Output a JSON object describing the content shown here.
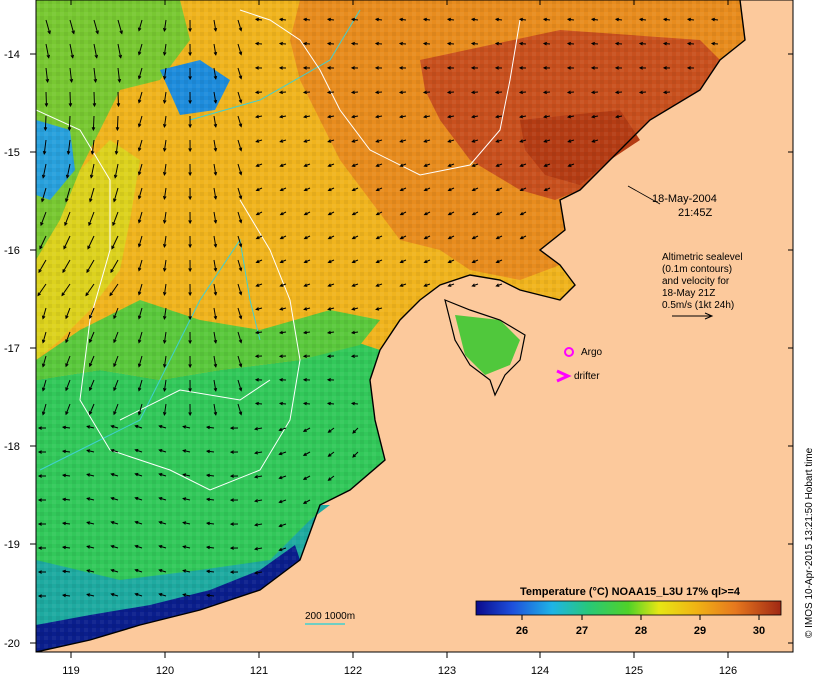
{
  "map": {
    "date_line1": "18-May-2004",
    "date_line2": "21:45Z",
    "altimetry": {
      "line1": "Altimetric sealevel",
      "line2": "(0.1m contours)",
      "line3": "and velocity for",
      "line4": "18-May 21Z",
      "line5": "0.5m/s (1kt 24h)"
    },
    "legend": {
      "argo": "Argo",
      "drifter": "drifter",
      "depth_contours": "200  1000m"
    },
    "axes": {
      "lon_ticks": [
        "119",
        "120",
        "121",
        "122",
        "123",
        "124",
        "125",
        "126"
      ],
      "lat_ticks": [
        "-14",
        "-15",
        "-16",
        "-17",
        "-18",
        "-19",
        "-20"
      ]
    },
    "colorbar": {
      "title": "Temperature (°C) NOAA15_L3U 17% ql>=4",
      "ticks": [
        "26",
        "27",
        "28",
        "29",
        "30"
      ]
    },
    "credit": "© IMOS 10-Apr-2015 13:21:50 Hobart time",
    "colors": {
      "land": "#fcc99c",
      "coastline": "#000000",
      "contour_200m": "#40d0d0",
      "contour_sealevel": "#ffffff",
      "argo_marker": "#ff00ff",
      "drifter_marker": "#ff00ff"
    }
  }
}
